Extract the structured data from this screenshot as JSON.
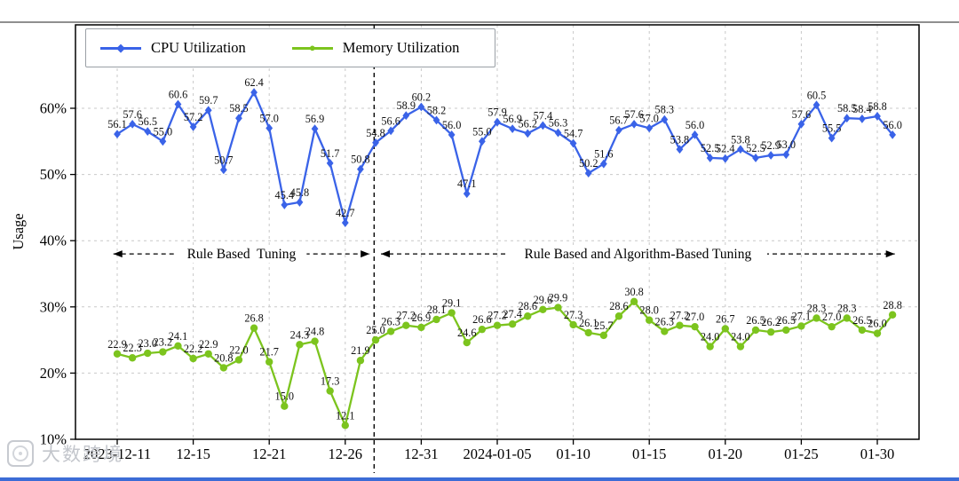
{
  "chart_data": {
    "type": "line",
    "title": "",
    "ylabel": "Usage",
    "y_ticks": [
      10,
      20,
      30,
      40,
      50,
      60
    ],
    "y_tick_suffix": "%",
    "ylim": [
      10,
      72.5
    ],
    "grid": "dashed",
    "legend_position": "upper-left",
    "x_tick_labels": [
      "2023-12-11",
      "12-15",
      "12-21",
      "12-26",
      "12-31",
      "2024-01-05",
      "01-10",
      "01-15",
      "01-20",
      "01-25",
      "01-30"
    ],
    "x_tick_indices": [
      0,
      5,
      10,
      15,
      20,
      25,
      30,
      35,
      40,
      45,
      50
    ],
    "divider_index": 16.9,
    "annotations": [
      {
        "text": "Rule Based  Tuning",
        "from": -0.25,
        "to": 16.6,
        "y": 38
      },
      {
        "text": "Rule Based and Algorithm-Based Tuning",
        "from": 17.35,
        "to": 51.15,
        "y": 38
      }
    ],
    "series": [
      {
        "name": "CPU Utilization",
        "color": "#3a63e8",
        "marker": "diamond",
        "values": [
          56.1,
          57.6,
          56.5,
          55.0,
          60.6,
          57.2,
          59.7,
          50.7,
          58.5,
          62.4,
          57.0,
          45.4,
          45.8,
          56.9,
          51.7,
          42.7,
          50.8,
          54.8,
          56.6,
          58.9,
          60.2,
          58.2,
          56.0,
          47.1,
          55.0,
          57.9,
          56.9,
          56.2,
          57.4,
          56.3,
          54.7,
          50.2,
          51.6,
          56.7,
          57.6,
          57.0,
          58.3,
          53.8,
          56.0,
          52.5,
          52.4,
          53.8,
          52.5,
          52.9,
          53.0,
          57.6,
          60.5,
          55.5,
          58.5,
          58.4,
          58.8,
          56.0
        ]
      },
      {
        "name": "Memory Utilization",
        "color": "#7cc41e",
        "marker": "circle",
        "values": [
          22.9,
          22.3,
          23.0,
          23.2,
          24.1,
          22.2,
          22.9,
          20.8,
          22.0,
          26.8,
          21.7,
          15.0,
          24.3,
          24.8,
          17.3,
          12.1,
          21.9,
          25.0,
          26.3,
          27.2,
          26.9,
          28.1,
          29.1,
          24.6,
          26.6,
          27.2,
          27.4,
          28.6,
          29.6,
          29.9,
          27.3,
          26.1,
          25.7,
          28.6,
          30.8,
          28.0,
          26.3,
          27.2,
          27.0,
          24.0,
          26.7,
          24.0,
          26.5,
          26.2,
          26.5,
          27.1,
          28.3,
          27.0,
          28.3,
          26.5,
          26.0,
          28.8
        ]
      }
    ]
  },
  "watermark": {
    "text": "大数跨境"
  }
}
